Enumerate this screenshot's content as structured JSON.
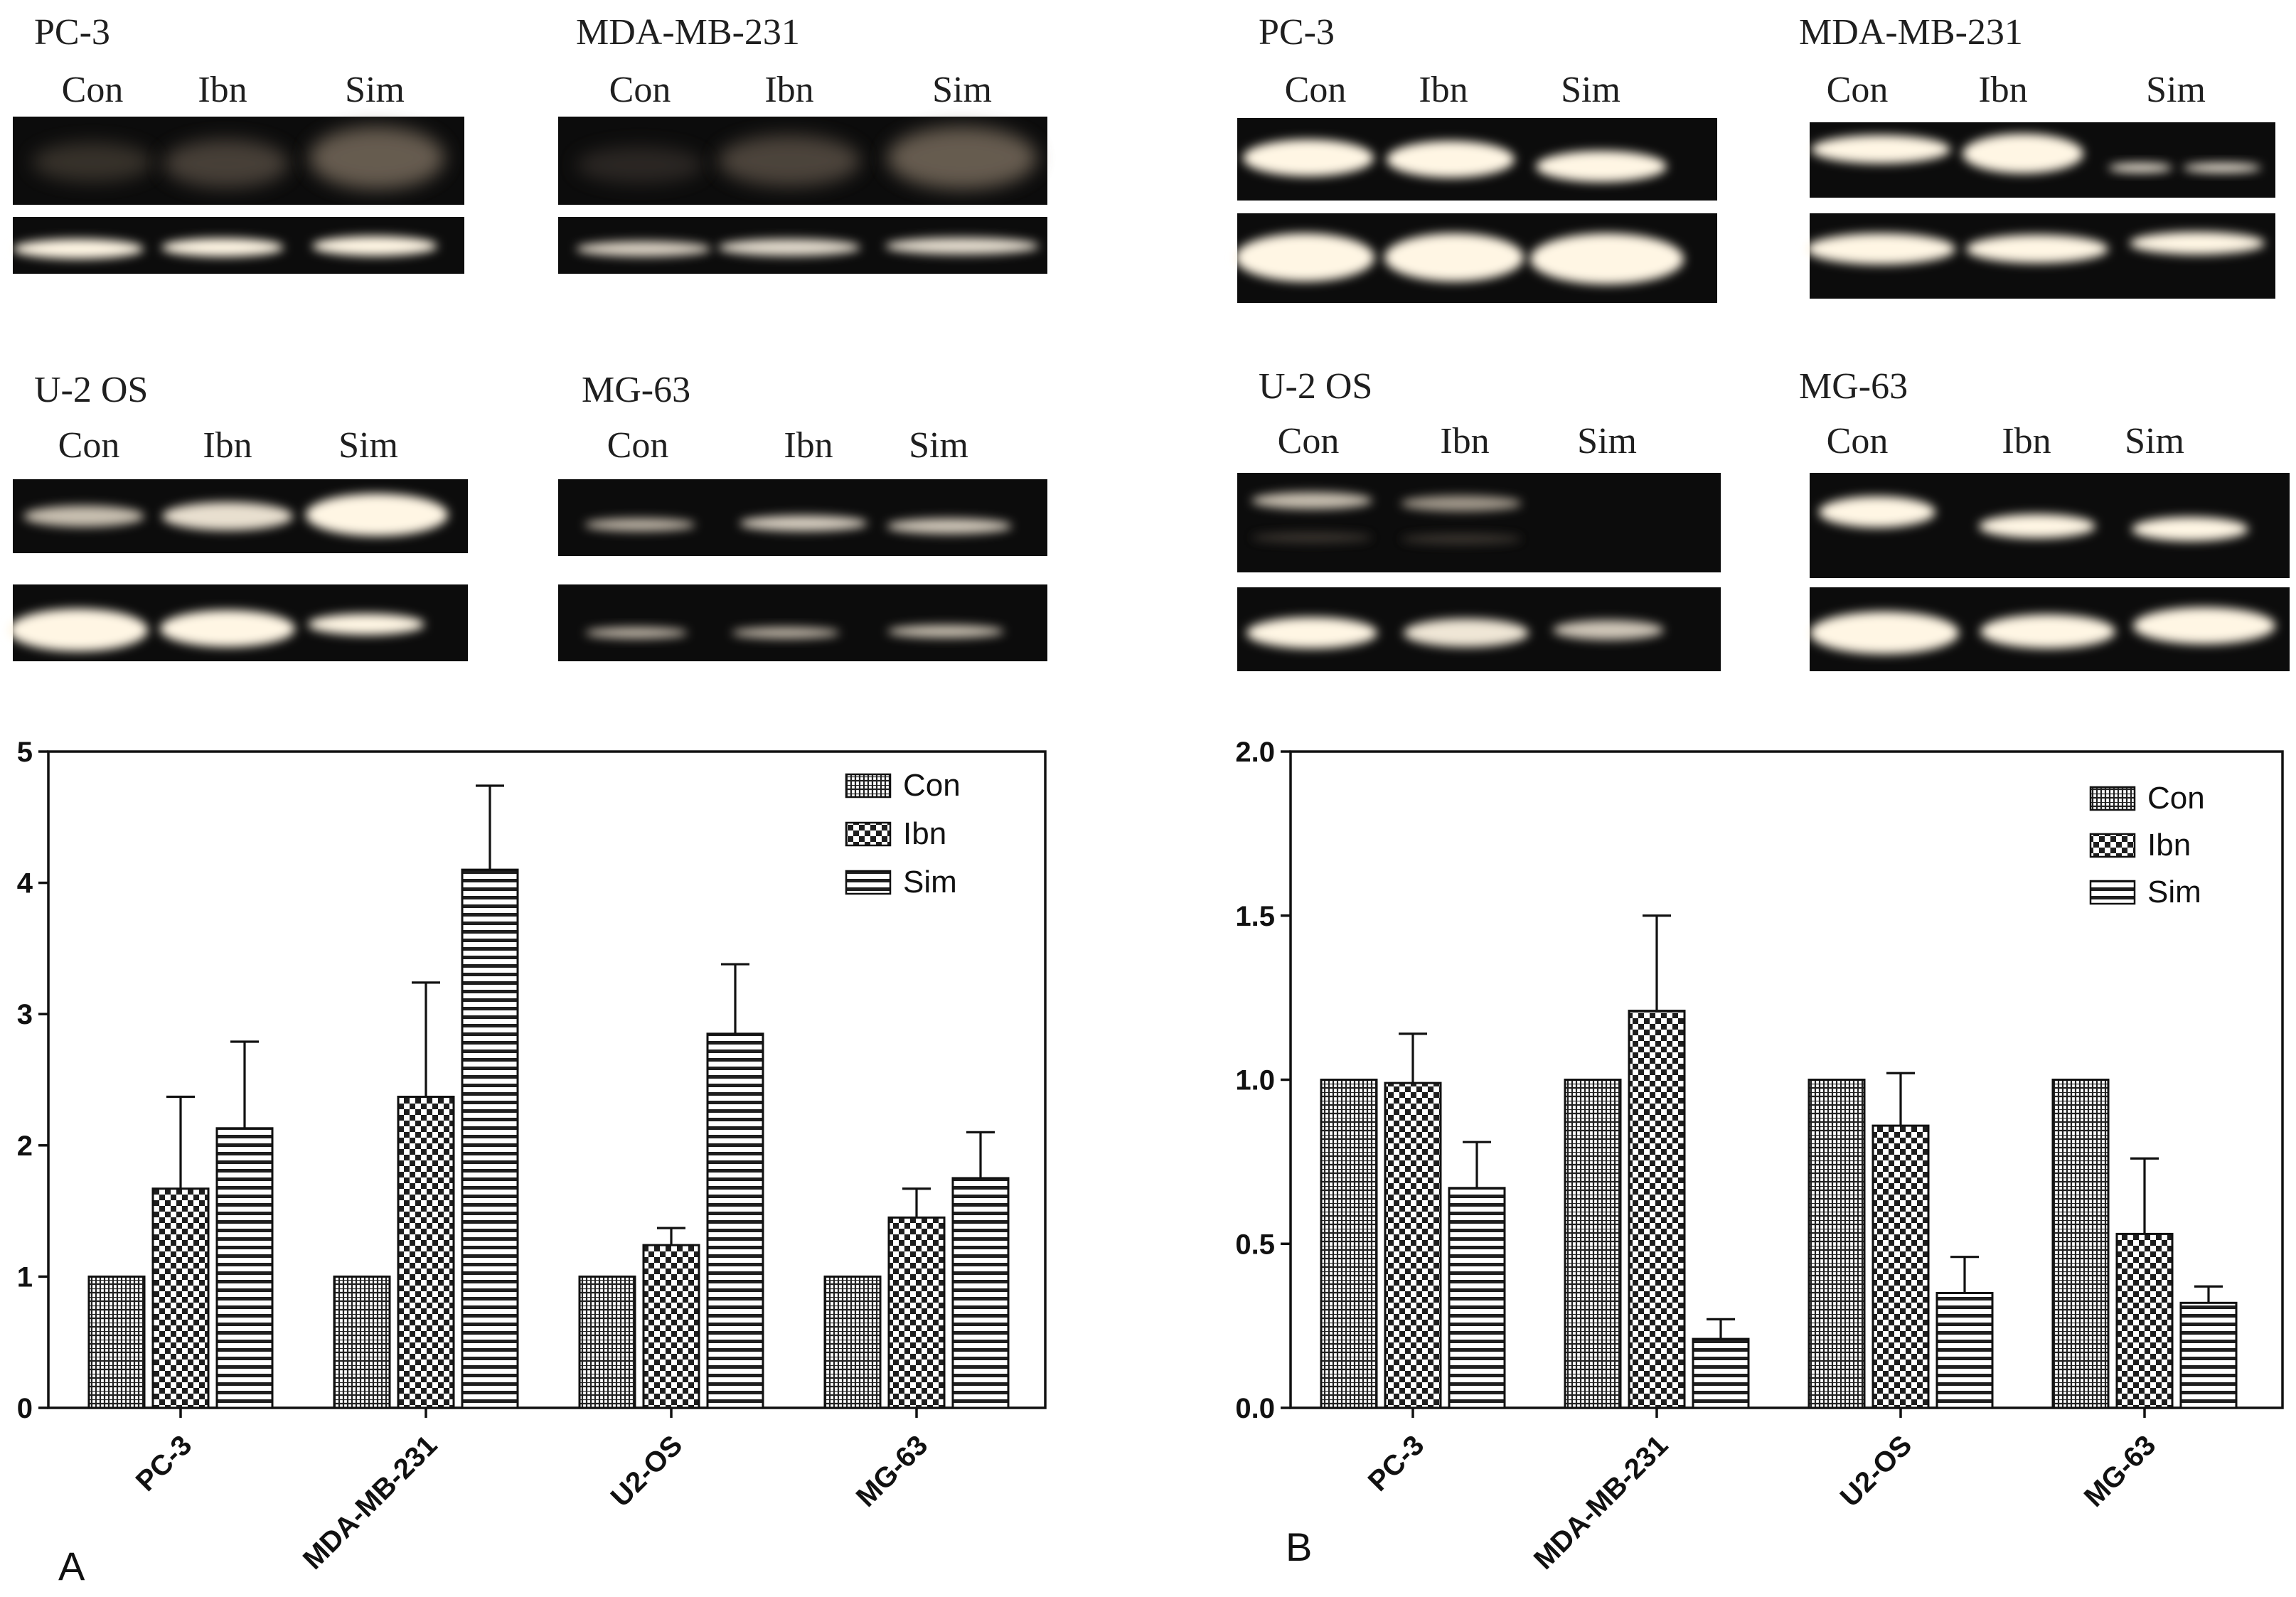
{
  "blots": [
    {
      "cell": "PC-3",
      "lanes": [
        "Con",
        "Ibn",
        "Sim"
      ]
    },
    {
      "cell": "MDA-MB-231",
      "lanes": [
        "Con",
        "Ibn",
        "Sim"
      ]
    },
    {
      "cell": "U-2 OS",
      "lanes": [
        "Con",
        "Ibn",
        "Sim"
      ]
    },
    {
      "cell": "MG-63",
      "lanes": [
        "Con",
        "Ibn",
        "Sim"
      ]
    },
    {
      "cell": "PC-3",
      "lanes": [
        "Con",
        "Ibn",
        "Sim"
      ]
    },
    {
      "cell": "MDA-MB-231",
      "lanes": [
        "Con",
        "Ibn",
        "Sim"
      ]
    },
    {
      "cell": "U-2 OS",
      "lanes": [
        "Con",
        "Ibn",
        "Sim"
      ]
    },
    {
      "cell": "MG-63",
      "lanes": [
        "Con",
        "Ibn",
        "Sim"
      ]
    }
  ],
  "colors": {
    "ink": "#111111",
    "gel": "#0c0c0c",
    "band": "#fff6e4"
  },
  "chart_data": [
    {
      "type": "bar",
      "panel_label": "A",
      "title": "",
      "xlabel": "",
      "ylabel": "",
      "categories": [
        "PC-3",
        "MDA-MB-231",
        "U2-OS",
        "MG-63"
      ],
      "ylim": [
        0,
        5
      ],
      "yticks": [
        "0",
        "1",
        "2",
        "3",
        "4",
        "5"
      ],
      "grid": false,
      "legend_position": "top-right",
      "series": [
        {
          "name": "Con",
          "pattern": "grid",
          "values": [
            1.0,
            1.0,
            1.0,
            1.0
          ],
          "errors": [
            0,
            0,
            0,
            0
          ]
        },
        {
          "name": "Ibn",
          "pattern": "checker",
          "values": [
            1.67,
            2.37,
            1.24,
            1.45
          ],
          "errors": [
            0.7,
            0.87,
            0.13,
            0.22
          ]
        },
        {
          "name": "Sim",
          "pattern": "hstripes",
          "values": [
            2.13,
            4.1,
            2.85,
            1.75
          ],
          "errors": [
            0.66,
            0.64,
            0.53,
            0.35
          ]
        }
      ]
    },
    {
      "type": "bar",
      "panel_label": "B",
      "title": "",
      "xlabel": "",
      "ylabel": "",
      "categories": [
        "PC-3",
        "MDA-MB-231",
        "U2-OS",
        "MG-63"
      ],
      "ylim": [
        0,
        2.0
      ],
      "yticks": [
        "0.0",
        "0.5",
        "1.0",
        "1.5",
        "2.0"
      ],
      "grid": false,
      "legend_position": "top-right",
      "series": [
        {
          "name": "Con",
          "pattern": "grid",
          "values": [
            1.0,
            1.0,
            1.0,
            1.0
          ],
          "errors": [
            0,
            0,
            0,
            0
          ]
        },
        {
          "name": "Ibn",
          "pattern": "checker",
          "values": [
            0.99,
            1.21,
            0.86,
            0.53
          ],
          "errors": [
            0.15,
            0.29,
            0.16,
            0.23
          ]
        },
        {
          "name": "Sim",
          "pattern": "hstripes",
          "values": [
            0.67,
            0.21,
            0.35,
            0.32
          ],
          "errors": [
            0.14,
            0.06,
            0.11,
            0.05
          ]
        }
      ]
    }
  ]
}
